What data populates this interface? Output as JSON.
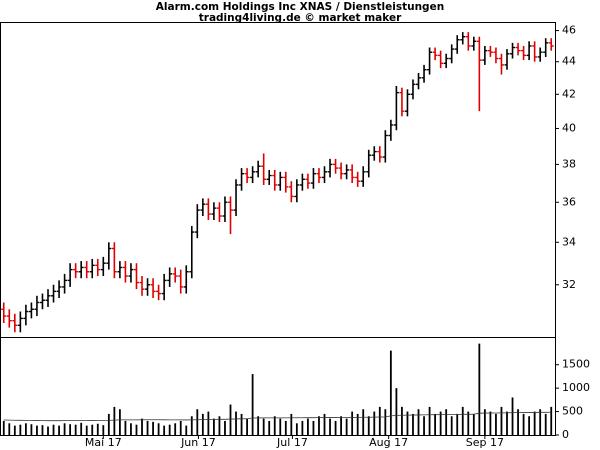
{
  "chart_data": [
    {
      "type": "ohlc",
      "title": "Alarm.com Holdings Inc XNAS / Dienstleistungen",
      "subtitle": "trading4living.de © market maker",
      "log_scale": true,
      "ylim": [
        29.7,
        46.5
      ],
      "yticks": [
        32,
        34,
        36,
        38,
        40,
        42,
        44,
        46
      ],
      "xlim": [
        0,
        100
      ],
      "up_color": "#000000",
      "down_color": "#e00000",
      "open": [
        30.9,
        30.6,
        30.4,
        30.2,
        30.5,
        30.8,
        30.9,
        31.2,
        31.3,
        31.5,
        31.7,
        31.9,
        32.2,
        32.7,
        32.6,
        32.8,
        32.6,
        32.9,
        32.7,
        33.0,
        33.7,
        32.6,
        32.8,
        32.4,
        32.7,
        32.1,
        31.8,
        32.0,
        31.7,
        31.6,
        32.2,
        32.5,
        32.4,
        31.9,
        32.6,
        34.5,
        35.6,
        35.9,
        35.4,
        35.7,
        35.3,
        36.0,
        35.6,
        36.9,
        37.5,
        37.3,
        37.6,
        37.9,
        37.2,
        37.4,
        36.9,
        37.3,
        36.8,
        36.3,
        36.9,
        37.2,
        37.0,
        37.5,
        37.3,
        37.6,
        38.0,
        37.8,
        37.5,
        37.7,
        37.3,
        37.1,
        37.6,
        38.5,
        38.7,
        38.4,
        39.6,
        40.2,
        42.1,
        41.0,
        42.0,
        42.6,
        43.0,
        43.5,
        44.6,
        44.4,
        43.9,
        44.2,
        44.8,
        45.4,
        45.6,
        45.0,
        45.3,
        44.1,
        44.7,
        44.6,
        44.2,
        43.8,
        44.5,
        44.9,
        44.7,
        44.4,
        45.0,
        44.3,
        44.6,
        45.2
      ],
      "high": [
        31.2,
        30.9,
        30.7,
        30.8,
        31.1,
        31.2,
        31.5,
        31.6,
        31.8,
        32.0,
        32.2,
        32.5,
        33.0,
        33.0,
        33.1,
        33.1,
        33.2,
        33.2,
        33.3,
        34.0,
        34.0,
        33.1,
        33.1,
        33.0,
        33.0,
        32.4,
        32.3,
        32.3,
        32.0,
        32.5,
        32.8,
        32.8,
        32.7,
        32.9,
        34.8,
        35.9,
        36.2,
        36.2,
        36.0,
        36.0,
        36.3,
        36.3,
        37.2,
        37.8,
        37.8,
        37.9,
        38.2,
        38.6,
        37.7,
        37.7,
        37.6,
        37.6,
        37.1,
        37.2,
        37.5,
        37.5,
        37.8,
        37.8,
        37.9,
        38.3,
        38.3,
        38.1,
        38.0,
        38.0,
        37.6,
        37.9,
        38.8,
        39.0,
        39.0,
        39.9,
        40.5,
        42.5,
        42.4,
        42.3,
        42.9,
        43.3,
        43.8,
        44.9,
        44.9,
        44.7,
        44.5,
        45.1,
        45.7,
        45.9,
        45.9,
        45.6,
        45.6,
        45.0,
        45.0,
        44.9,
        44.5,
        44.8,
        45.2,
        45.2,
        45.0,
        45.3,
        45.3,
        44.9,
        45.5,
        45.5
      ],
      "low": [
        30.3,
        30.1,
        29.9,
        29.9,
        30.2,
        30.5,
        30.6,
        30.9,
        31.0,
        31.2,
        31.4,
        31.6,
        31.9,
        32.3,
        32.3,
        32.3,
        32.3,
        32.4,
        32.4,
        32.7,
        32.3,
        32.3,
        32.1,
        32.1,
        31.8,
        31.5,
        31.5,
        31.4,
        31.3,
        31.3,
        31.9,
        32.1,
        31.6,
        31.6,
        32.3,
        34.2,
        35.3,
        35.1,
        35.1,
        35.0,
        35.0,
        34.4,
        35.3,
        36.6,
        37.0,
        37.0,
        37.3,
        36.9,
        36.9,
        36.6,
        36.6,
        36.5,
        36.0,
        36.0,
        36.6,
        36.7,
        36.7,
        37.0,
        37.0,
        37.3,
        37.5,
        37.2,
        37.2,
        37.0,
        36.8,
        36.8,
        37.3,
        38.2,
        38.1,
        38.1,
        39.3,
        39.9,
        40.7,
        40.7,
        41.7,
        42.3,
        42.7,
        43.2,
        44.1,
        43.6,
        43.6,
        43.9,
        44.5,
        45.1,
        44.7,
        44.7,
        41.0,
        43.8,
        44.3,
        43.9,
        43.2,
        43.5,
        44.2,
        44.4,
        44.1,
        44.1,
        44.0,
        44.0,
        44.3,
        44.7
      ],
      "close": [
        30.6,
        30.4,
        30.2,
        30.5,
        30.8,
        30.9,
        31.2,
        31.3,
        31.5,
        31.7,
        31.9,
        32.2,
        32.7,
        32.6,
        32.8,
        32.6,
        32.9,
        32.7,
        33.0,
        33.7,
        32.6,
        32.8,
        32.4,
        32.7,
        32.1,
        31.8,
        32.0,
        31.7,
        31.6,
        32.2,
        32.5,
        32.4,
        31.9,
        32.6,
        34.5,
        35.6,
        35.9,
        35.4,
        35.7,
        35.3,
        36.0,
        35.6,
        36.9,
        37.5,
        37.3,
        37.6,
        37.9,
        37.2,
        37.4,
        36.9,
        37.3,
        36.8,
        36.3,
        36.9,
        37.2,
        37.0,
        37.5,
        37.3,
        37.6,
        38.0,
        37.8,
        37.5,
        37.7,
        37.3,
        37.1,
        37.6,
        38.5,
        38.7,
        38.4,
        39.6,
        40.2,
        42.1,
        41.0,
        42.0,
        42.6,
        43.0,
        43.5,
        44.6,
        44.4,
        43.9,
        44.2,
        44.8,
        45.4,
        45.6,
        45.0,
        45.3,
        44.1,
        44.7,
        44.6,
        44.2,
        43.8,
        44.5,
        44.9,
        44.7,
        44.4,
        45.0,
        44.3,
        44.6,
        45.2,
        45.0
      ]
    },
    {
      "type": "volume",
      "ylim": [
        0,
        2070
      ],
      "yticks": [
        0,
        500,
        1000,
        1500
      ],
      "xlim": [
        0,
        100
      ],
      "color": "#000000",
      "xticks": [
        {
          "value": 18.5,
          "label": "Mai 17"
        },
        {
          "value": 35.7,
          "label": "Jun 17"
        },
        {
          "value": 52.7,
          "label": "Jul 17"
        },
        {
          "value": 70.1,
          "label": "Aug 17"
        },
        {
          "value": 87.5,
          "label": "Sep 17"
        }
      ],
      "values": [
        300,
        250,
        200,
        220,
        250,
        230,
        200,
        210,
        180,
        220,
        200,
        250,
        230,
        220,
        260,
        200,
        220,
        240,
        210,
        450,
        600,
        550,
        300,
        250,
        220,
        350,
        300,
        280,
        250,
        200,
        220,
        250,
        300,
        200,
        400,
        550,
        450,
        500,
        350,
        400,
        300,
        650,
        500,
        450,
        350,
        1300,
        400,
        350,
        300,
        400,
        350,
        300,
        450,
        250,
        300,
        350,
        300,
        400,
        450,
        350,
        300,
        400,
        350,
        500,
        450,
        550,
        400,
        500,
        600,
        550,
        1800,
        1000,
        600,
        500,
        450,
        550,
        400,
        600,
        450,
        500,
        550,
        400,
        450,
        600,
        500,
        450,
        1950,
        550,
        500,
        450,
        600,
        500,
        800,
        550,
        450,
        400,
        500,
        550,
        450,
        600
      ],
      "average": [
        320,
        318,
        315,
        313,
        312,
        310,
        308,
        307,
        305,
        305,
        305,
        306,
        306,
        307,
        307,
        307,
        308,
        309,
        310,
        312,
        318,
        322,
        323,
        323,
        323,
        324,
        325,
        325,
        325,
        324,
        323,
        322,
        322,
        321,
        322,
        326,
        330,
        333,
        334,
        335,
        335,
        340,
        343,
        345,
        346,
        362,
        364,
        365,
        365,
        366,
        366,
        366,
        368,
        368,
        368,
        369,
        369,
        370,
        372,
        372,
        372,
        373,
        373,
        375,
        376,
        378,
        379,
        381,
        384,
        386,
        408,
        418,
        422,
        424,
        426,
        428,
        429,
        432,
        433,
        435,
        437,
        437,
        438,
        441,
        442,
        443,
        465,
        468,
        469,
        470,
        472,
        473,
        478,
        480,
        481,
        481,
        482,
        484,
        484,
        486
      ]
    }
  ]
}
